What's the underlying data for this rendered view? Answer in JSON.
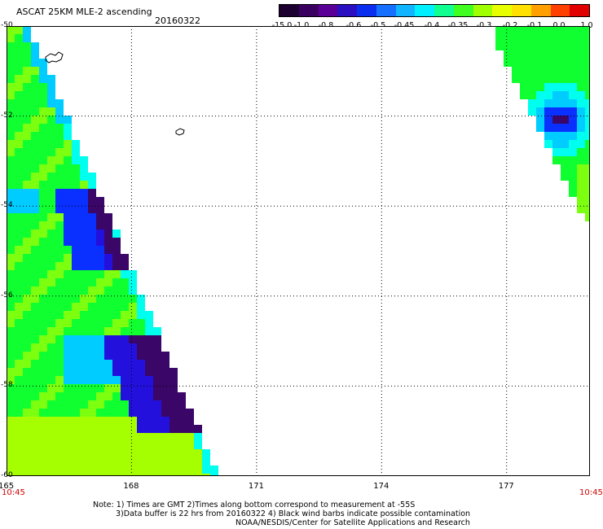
{
  "header": {
    "title": "ASCAT 25KM MLE-2 ascending",
    "date": "20160322"
  },
  "colorbar": {
    "tick_labels": [
      "-15.0",
      "-1.0",
      "-0.8",
      "-0.6",
      "-0.5",
      "-0.45",
      "-0.4",
      "-0.35",
      "-0.3",
      "-0.2",
      "-0.1",
      "0.0",
      "1.0"
    ],
    "colors": [
      "#1b0030",
      "#3a0060",
      "#5a0096",
      "#2a10c0",
      "#0a2ef0",
      "#1570ff",
      "#10b4ff",
      "#00f0ff",
      "#10ff90",
      "#40ff20",
      "#a0ff00",
      "#e8ff00",
      "#ffe000",
      "#ffa000",
      "#ff4000",
      "#e00000"
    ]
  },
  "map": {
    "lat_range": [
      -60,
      -50
    ],
    "lon_range": [
      165,
      179
    ],
    "lat_labels": [
      "-50",
      "-52",
      "-54",
      "-56",
      "-58",
      "-60"
    ],
    "lon_labels": [
      "165",
      "168",
      "171",
      "174",
      "177"
    ],
    "grid": true,
    "time_left": "10:45",
    "time_right": "10:45",
    "legend_colors": {
      "deep": "#3a0668",
      "dark_blue": "#2410dc",
      "blue": "#0a30ff",
      "light_blue": "#00ccff",
      "cyan": "#00ffee",
      "green": "#10ff30",
      "light_green": "#7dff10",
      "yellow_green": "#a6ff00"
    }
  },
  "footer": {
    "line1": "Note: 1) Times are GMT 2)Times along bottom correspond to measurement at -55S",
    "line2": "3)Data buffer is 22 hrs from 20160322 4) Black wind barbs indicate possible contamination",
    "line3": "NOAA/NESDIS/Center for Satellite Applications and Research"
  }
}
